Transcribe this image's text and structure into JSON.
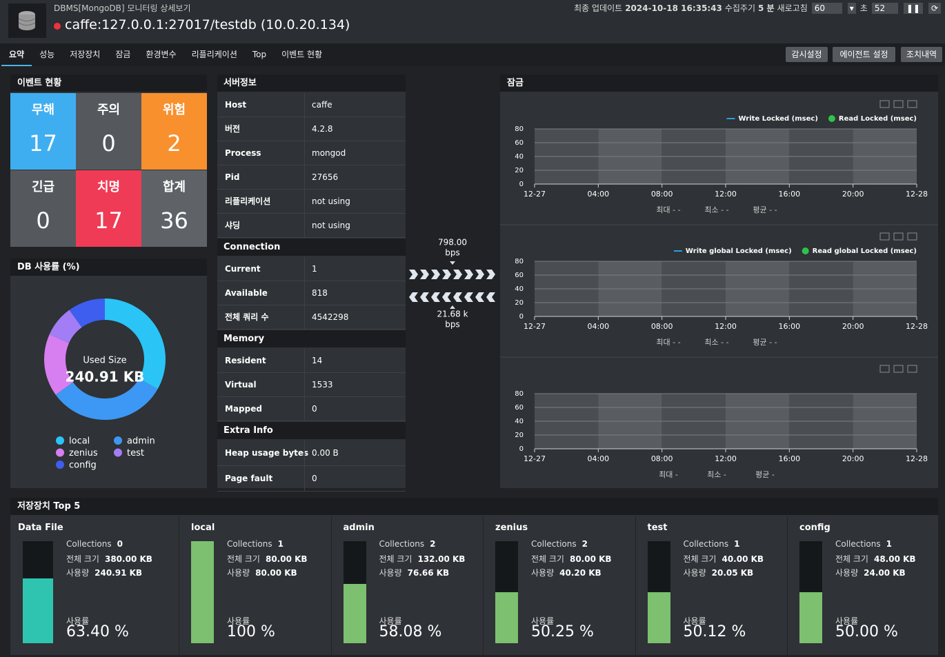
{
  "header": {
    "category": "DBMS[MongoDB] 모니터링 상세보기",
    "title": "caffe:127.0.0.1:27017/testdb (10.0.20.134)",
    "update_label": "최종 업데이트",
    "update_time": "2024-10-18 16:35:43",
    "cycle_label": "수집주기",
    "cycle_value": "5 분",
    "refresh_label": "새로고침",
    "refresh_value": "60",
    "sec_label": "초",
    "countdown": "52"
  },
  "tabs": [
    "요약",
    "성능",
    "저장장치",
    "잠금",
    "환경변수",
    "리플리케이션",
    "Top",
    "이벤트 현황"
  ],
  "buttons": [
    "감시설정",
    "에이전트 설정",
    "조치내역"
  ],
  "events": {
    "title": "이벤트 현황",
    "cells": [
      {
        "label": "무해",
        "value": 17,
        "color": "#3eaef0"
      },
      {
        "label": "주의",
        "value": 0,
        "color": "#55595e"
      },
      {
        "label": "위험",
        "value": 2,
        "color": "#f8902e"
      },
      {
        "label": "긴급",
        "value": 0,
        "color": "#55595e"
      },
      {
        "label": "치명",
        "value": 17,
        "color": "#ef3b55"
      },
      {
        "label": "합계",
        "value": 36,
        "color": "#5f6368"
      }
    ]
  },
  "db_usage": {
    "title": "DB 사용률 (%)",
    "center_label": "Used Size",
    "center_value": "240.91 KB",
    "segments": [
      {
        "name": "local",
        "color": "#2bc4f7",
        "value": 80
      },
      {
        "name": "admin",
        "color": "#3c98f4",
        "value": 76.66
      },
      {
        "name": "zenius",
        "color": "#d77ef0",
        "value": 40.2
      },
      {
        "name": "test",
        "color": "#a27df5",
        "value": 20.05
      },
      {
        "name": "config",
        "color": "#3e5ef0",
        "value": 24
      }
    ]
  },
  "server_info": {
    "sections": [
      {
        "title": "서버정보",
        "rows": [
          [
            "Host",
            "caffe"
          ],
          [
            "버전",
            "4.2.8"
          ],
          [
            "Process",
            "mongod"
          ],
          [
            "Pid",
            "27656"
          ],
          [
            "리플리케이션",
            "not using"
          ],
          [
            "샤딩",
            "not using"
          ]
        ]
      },
      {
        "title": "Connection",
        "rows": [
          [
            "Current",
            "1"
          ],
          [
            "Available",
            "818"
          ],
          [
            "전체 쿼리 수",
            "4542298"
          ]
        ]
      },
      {
        "title": "Memory",
        "rows": [
          [
            "Resident",
            "14"
          ],
          [
            "Virtual",
            "1533"
          ],
          [
            "Mapped",
            "0"
          ]
        ]
      },
      {
        "title": "Extra Info",
        "rows": [
          [
            "Heap usage bytes",
            "0.00 B"
          ],
          [
            "Page fault",
            "0"
          ]
        ]
      }
    ]
  },
  "traffic": {
    "out_value": "798.00",
    "out_unit": "bps",
    "in_value": "21.68 k",
    "in_unit": "bps"
  },
  "locks": {
    "title": "잠금",
    "charts": [
      {
        "series": [
          {
            "name": "Write Locked  (msec)",
            "color": "#2b9fe0",
            "marker": "line"
          },
          {
            "name": "Read Locked  (msec)",
            "color": "#2ec24a",
            "marker": "dot"
          }
        ],
        "ylim": [
          0,
          80
        ],
        "yticks": [
          0,
          20,
          40,
          60,
          80
        ],
        "xticks": [
          "12-27",
          "04:00",
          "08:00",
          "12:00",
          "16:00",
          "20:00",
          "12-28"
        ],
        "stats": [
          "최대 - -",
          "최소 - -",
          "평균 - -"
        ]
      },
      {
        "series": [
          {
            "name": "Write global Locked  (msec)",
            "color": "#2b9fe0",
            "marker": "line"
          },
          {
            "name": "Read global Locked  (msec)",
            "color": "#2ec24a",
            "marker": "dot"
          }
        ],
        "ylim": [
          0,
          80
        ],
        "yticks": [
          0,
          20,
          40,
          60,
          80
        ],
        "xticks": [
          "12-27",
          "04:00",
          "08:00",
          "12:00",
          "16:00",
          "20:00",
          "12-28"
        ],
        "stats": [
          "최대 - -",
          "최소 - -",
          "평균 - -"
        ]
      },
      {
        "series": [],
        "ylim": [
          0,
          80
        ],
        "yticks": [
          0,
          20,
          40,
          60,
          80
        ],
        "xticks": [
          "12-27",
          "04:00",
          "08:00",
          "12:00",
          "16:00",
          "20:00",
          "12-28"
        ],
        "stats": [
          "최대 -",
          "최소 -",
          "평균 -"
        ]
      }
    ]
  },
  "storage": {
    "title": "저장장치 Top 5",
    "collections_label": "Collections",
    "total_label": "전체 크기",
    "used_label": "사용량",
    "usage_label": "사용률",
    "items": [
      {
        "name": "Data File",
        "collections": 0,
        "total": "380.00 KB",
        "used": "240.91 KB",
        "usage": 63.4,
        "usage_text": "63.40 %",
        "color": "#2ec4b0"
      },
      {
        "name": "local",
        "collections": 1,
        "total": "80.00 KB",
        "used": "80.00 KB",
        "usage": 100,
        "usage_text": "100 %",
        "color": "#7cc070"
      },
      {
        "name": "admin",
        "collections": 2,
        "total": "132.00 KB",
        "used": "76.66 KB",
        "usage": 58.08,
        "usage_text": "58.08 %",
        "color": "#7cc070"
      },
      {
        "name": "zenius",
        "collections": 2,
        "total": "80.00 KB",
        "used": "40.20 KB",
        "usage": 50.25,
        "usage_text": "50.25 %",
        "color": "#7cc070"
      },
      {
        "name": "test",
        "collections": 1,
        "total": "40.00 KB",
        "used": "20.05 KB",
        "usage": 50.12,
        "usage_text": "50.12 %",
        "color": "#7cc070"
      },
      {
        "name": "config",
        "collections": 1,
        "total": "48.00 KB",
        "used": "24.00 KB",
        "usage": 50,
        "usage_text": "50.00 %",
        "color": "#7cc070"
      }
    ]
  }
}
